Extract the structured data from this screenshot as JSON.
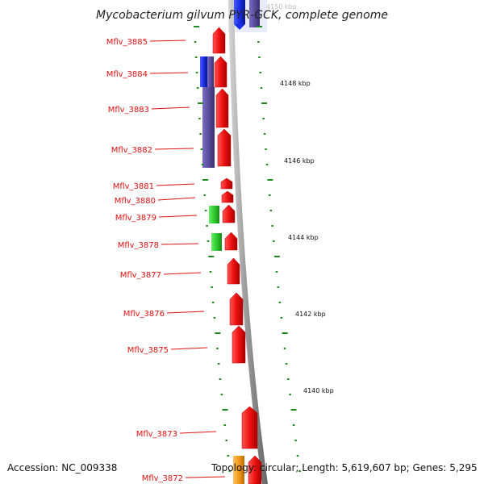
{
  "title": "Mycobacterium gilvum PYR-GCK, complete genome",
  "accession": "Accession: NC_009338",
  "summary": "Topology: circular; Length: 5,619,607 bp; Genes: 5,295",
  "kbp_labels": [
    "4150 kbp",
    "4148 kbp",
    "4146 kbp",
    "4144 kbp",
    "4142 kbp",
    "4140 kbp"
  ],
  "gene_labels": [
    "Mflv_3885",
    "Mflv_3884",
    "Mflv_3883",
    "Mflv_3882",
    "Mflv_3881",
    "Mflv_3880",
    "Mflv_3879",
    "Mflv_3878",
    "Mflv_3877",
    "Mflv_3876",
    "Mflv_3875",
    "Mflv_3873",
    "Mflv_3872"
  ],
  "colors": {
    "cds": "#ee1111",
    "blue_feature": "#1a2ee6",
    "purple_feature": "#5a4c9e",
    "green_feature": "#2ecc2e",
    "orange_feature": "#f29a1a",
    "backbone": "#888888",
    "gc_ticks": "#1f8a1f",
    "label": "#e01010"
  }
}
